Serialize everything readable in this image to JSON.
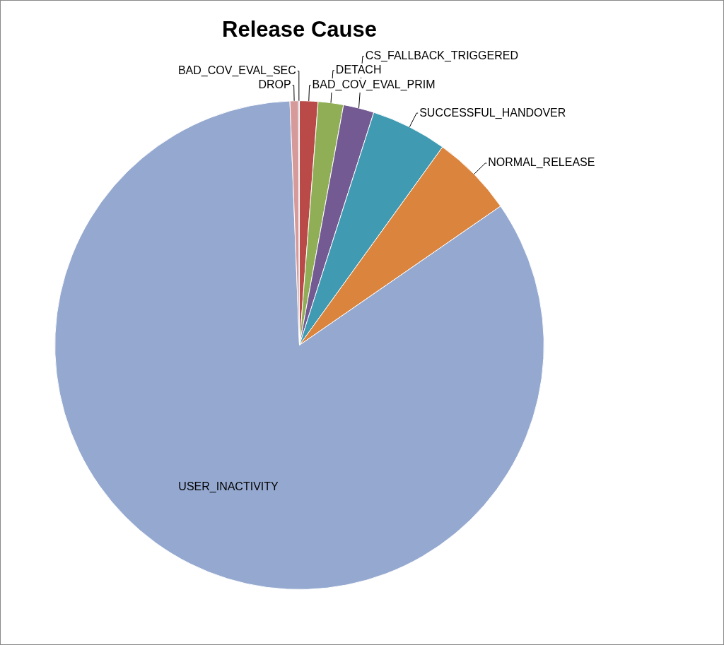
{
  "chart_data": {
    "type": "pie",
    "title": "Release Cause",
    "categories": [
      "BAD_COV_EVAL_PRIM",
      "DETACH",
      "CS_FALLBACK_TRIGGERED",
      "SUCCESSFUL_HANDOVER",
      "NORMAL_RELEASE",
      "USER_INACTIVITY",
      "DROP",
      "BAD_COV_EVAL_SEC"
    ],
    "values": [
      1.22,
      1.67,
      2.03,
      5.03,
      5.42,
      84.01,
      0.56,
      0.06
    ],
    "colors": [
      "#b94a48",
      "#8fae55",
      "#735a92",
      "#3f9ab2",
      "#db843d",
      "#95a9d0",
      "#d69a9a",
      "#4f81bd"
    ],
    "legend": false
  }
}
